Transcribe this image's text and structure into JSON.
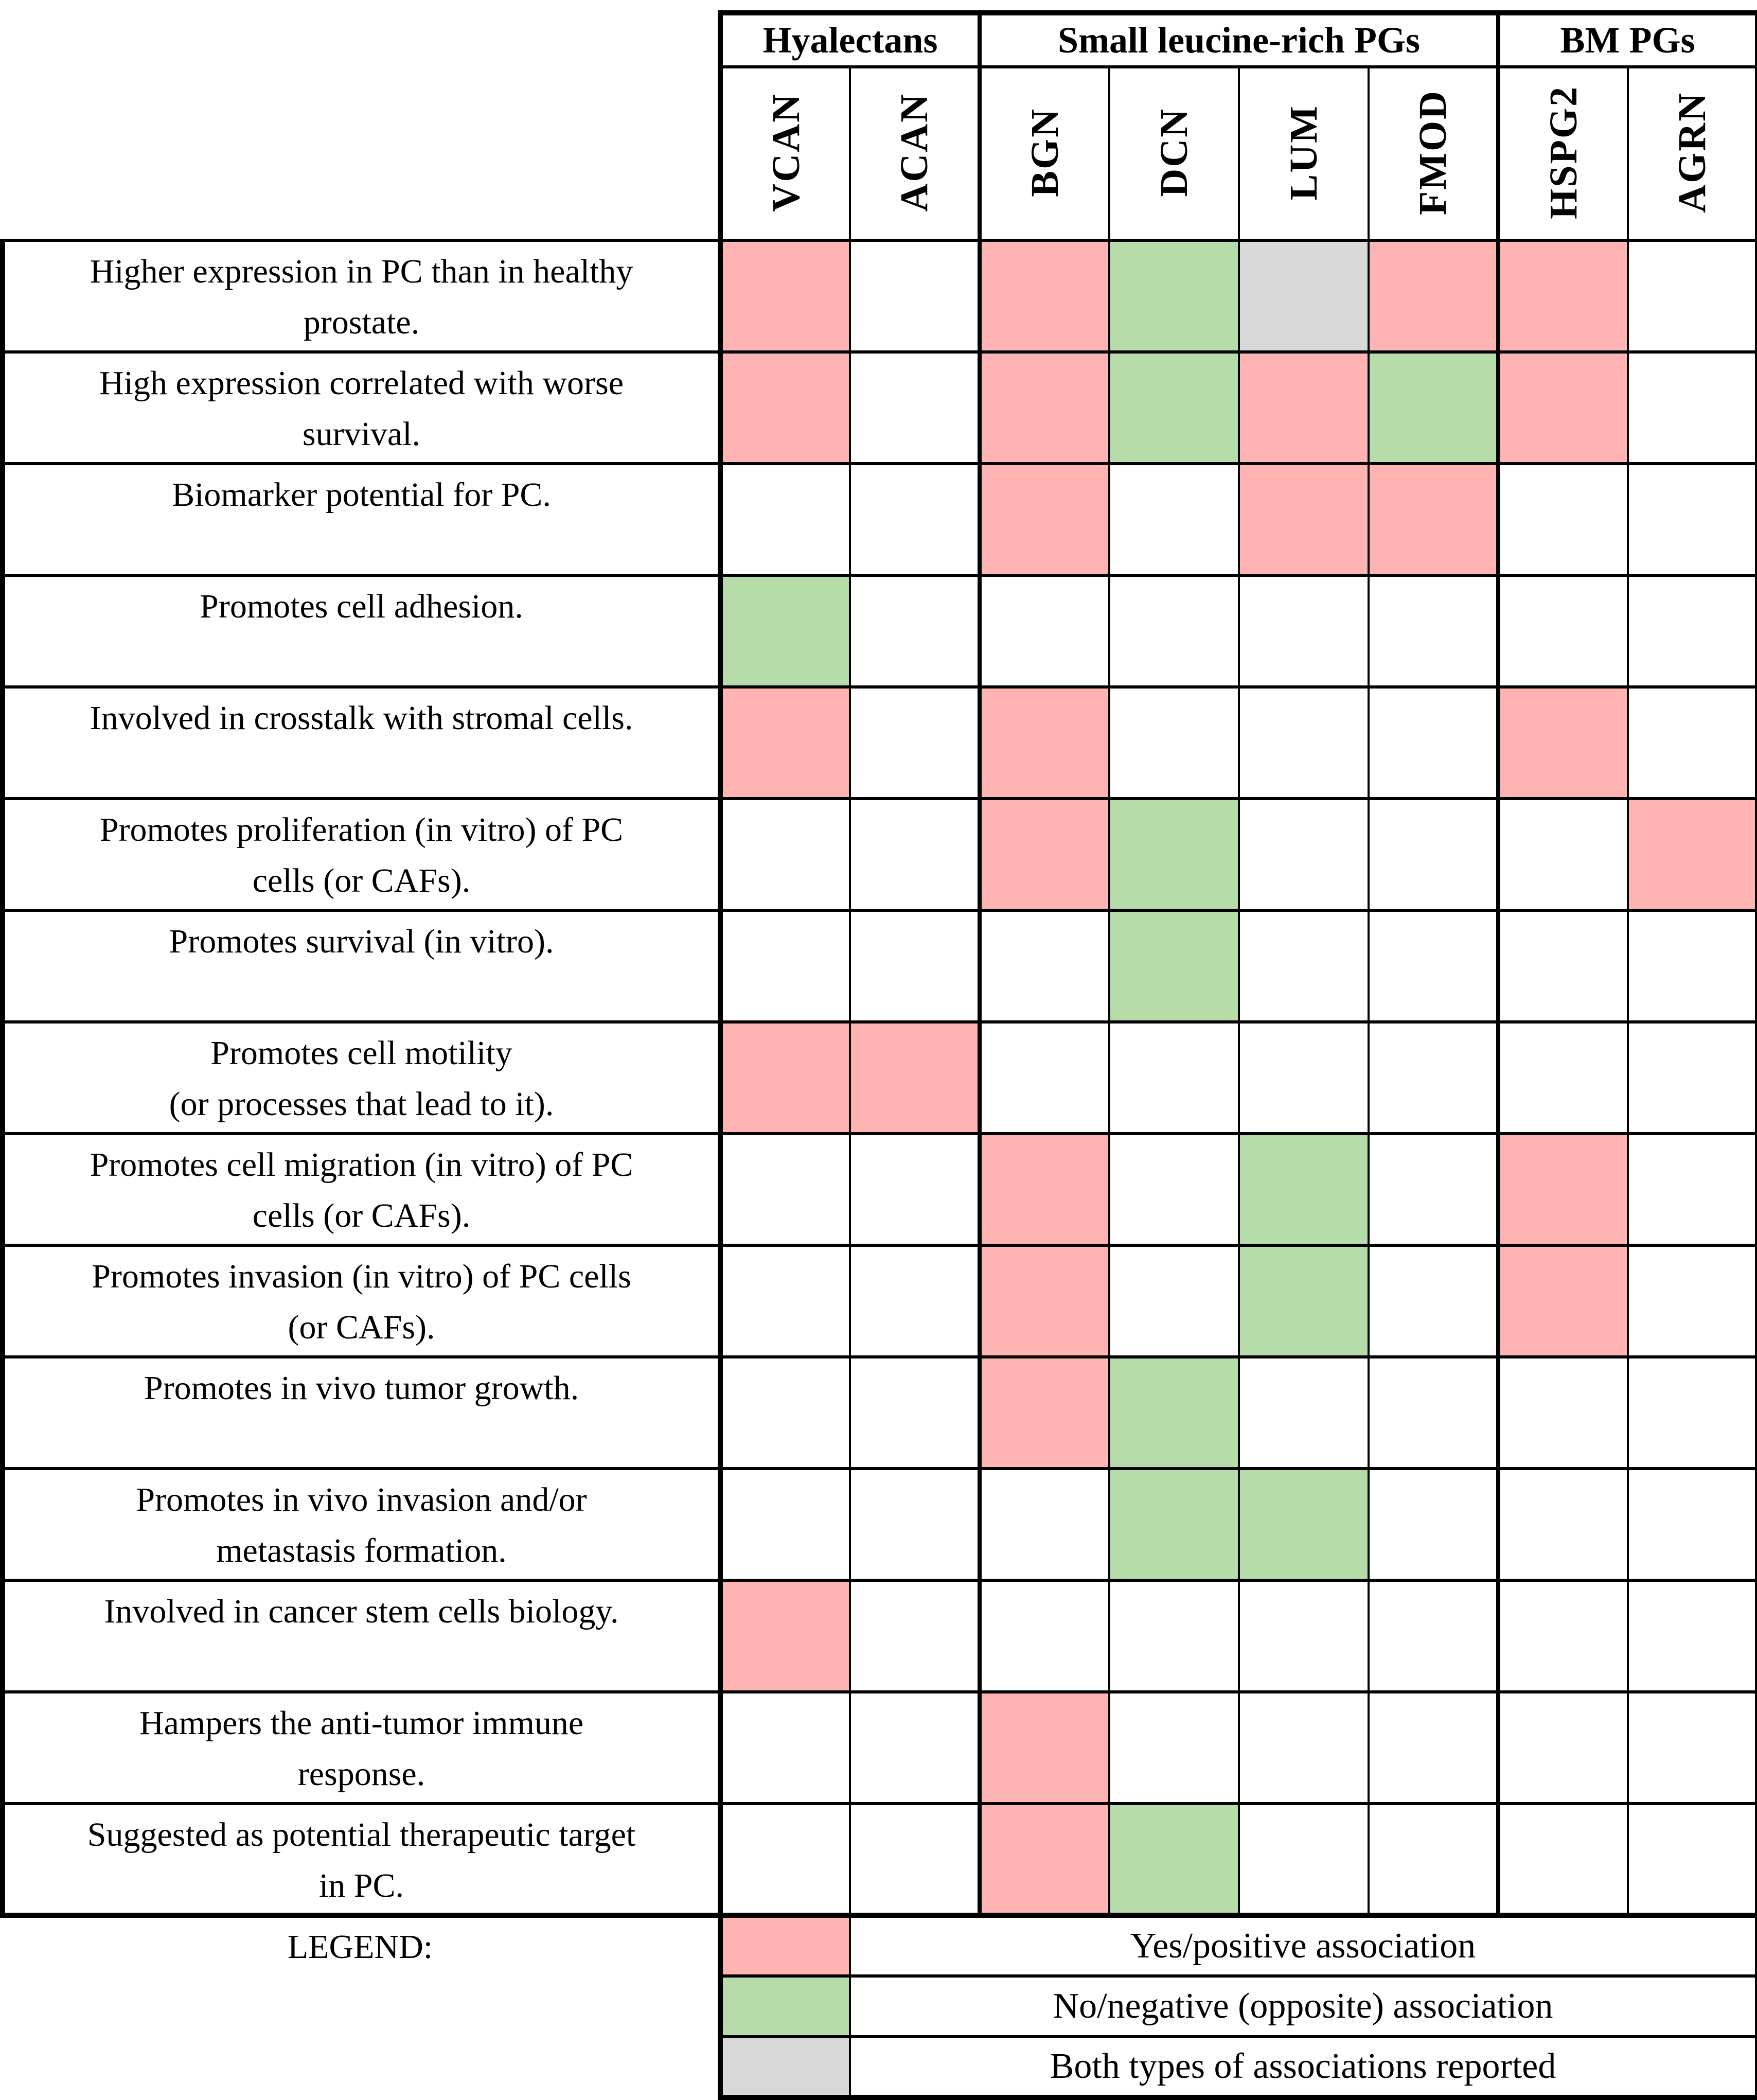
{
  "table": {
    "column_groups": [
      {
        "label": "Hyalectans",
        "span": 2
      },
      {
        "label": "Small leucine-rich PGs",
        "span": 4
      },
      {
        "label": "BM PGs",
        "span": 2
      }
    ],
    "columns": [
      "VCAN",
      "ACAN",
      "BGN",
      "DCN",
      "LUM",
      "FMOD",
      "HSPG2",
      "AGRN"
    ],
    "rows": [
      {
        "label": "Higher expression in PC than in healthy\nprostate.",
        "cells": [
          "yes",
          "",
          "yes",
          "no",
          "both",
          "yes",
          "yes",
          ""
        ]
      },
      {
        "label": "High expression correlated with worse\nsurvival.",
        "cells": [
          "yes",
          "",
          "yes",
          "no",
          "yes",
          "no",
          "yes",
          ""
        ]
      },
      {
        "label": "Biomarker potential for PC.",
        "cells": [
          "",
          "",
          "yes",
          "",
          "yes",
          "yes",
          "",
          ""
        ]
      },
      {
        "label": "Promotes cell adhesion.",
        "cells": [
          "no",
          "",
          "",
          "",
          "",
          "",
          "",
          ""
        ]
      },
      {
        "label": "Involved in crosstalk with stromal cells.",
        "cells": [
          "yes",
          "",
          "yes",
          "",
          "",
          "",
          "yes",
          ""
        ]
      },
      {
        "label": "Promotes proliferation (in vitro) of PC\ncells (or CAFs).",
        "cells": [
          "",
          "",
          "yes",
          "no",
          "",
          "",
          "",
          "yes"
        ]
      },
      {
        "label": "Promotes survival (in vitro).",
        "cells": [
          "",
          "",
          "",
          "no",
          "",
          "",
          "",
          ""
        ]
      },
      {
        "label": "Promotes cell motility\n(or processes that lead to it).",
        "cells": [
          "yes",
          "yes",
          "",
          "",
          "",
          "",
          "",
          ""
        ]
      },
      {
        "label": "Promotes cell migration (in vitro) of PC\ncells (or CAFs).",
        "cells": [
          "",
          "",
          "yes",
          "",
          "no",
          "",
          "yes",
          ""
        ]
      },
      {
        "label": "Promotes invasion (in vitro) of PC cells\n(or CAFs).",
        "cells": [
          "",
          "",
          "yes",
          "",
          "no",
          "",
          "yes",
          ""
        ]
      },
      {
        "label": "Promotes in vivo tumor growth.",
        "cells": [
          "",
          "",
          "yes",
          "no",
          "",
          "",
          "",
          ""
        ]
      },
      {
        "label": "Promotes in vivo invasion and/or\nmetastasis formation.",
        "cells": [
          "",
          "",
          "",
          "no",
          "no",
          "",
          "",
          ""
        ]
      },
      {
        "label": "Involved in cancer stem cells biology.",
        "cells": [
          "yes",
          "",
          "",
          "",
          "",
          "",
          "",
          ""
        ]
      },
      {
        "label": "Hampers the anti-tumor immune\nresponse.",
        "cells": [
          "",
          "",
          "yes",
          "",
          "",
          "",
          "",
          ""
        ]
      },
      {
        "label": "Suggested as potential therapeutic target\nin PC.",
        "cells": [
          "",
          "",
          "yes",
          "no",
          "",
          "",
          "",
          ""
        ]
      }
    ]
  },
  "legend": {
    "title": "LEGEND:",
    "items": [
      {
        "type": "yes",
        "label": "Yes/positive association"
      },
      {
        "type": "no",
        "label": "No/negative (opposite) association"
      },
      {
        "type": "both",
        "label": "Both types of associations reported"
      }
    ]
  },
  "colors": {
    "yes": "#FFB3B3",
    "no": "#B5DCA9",
    "both": "#D9D9D9"
  }
}
